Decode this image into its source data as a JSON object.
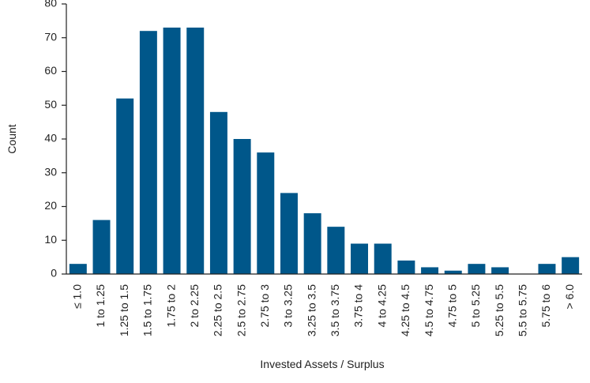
{
  "chart_data": {
    "type": "bar",
    "x_label": "Invested Assets / Surplus",
    "y_label": "Count",
    "categories": [
      "≤ 1.0",
      "1 to 1.25",
      "1.25 to 1.5",
      "1.5 to 1.75",
      "1.75 to 2",
      "2 to 2.25",
      "2.25 to 2.5",
      "2.5 to 2.75",
      "2.75 to 3",
      "3 to 3.25",
      "3.25 to 3.5",
      "3.5 to 3.75",
      "3.75 to 4",
      "4 to 4.25",
      "4.25 to 4.5",
      "4.5 to 4.75",
      "4.75 to 5",
      "5 to 5.25",
      "5.25 to 5.5",
      "5.5 to 5.75",
      "5.75 to 6",
      "> 6.0"
    ],
    "values": [
      3,
      16,
      52,
      72,
      73,
      73,
      48,
      40,
      36,
      24,
      18,
      14,
      9,
      9,
      4,
      2,
      1,
      3,
      2,
      0,
      3,
      5
    ],
    "color": "#00578a",
    "ylim": [
      0,
      80
    ],
    "yticks": [
      0,
      10,
      20,
      30,
      40,
      50,
      60,
      70,
      80
    ],
    "grid": false
  }
}
